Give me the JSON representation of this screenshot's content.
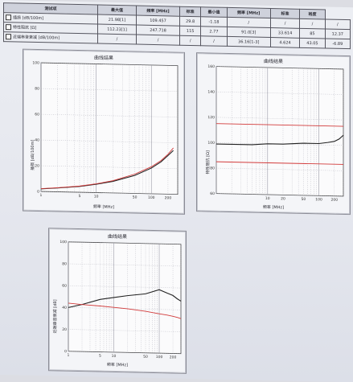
{
  "table": {
    "headers": [
      "测试项",
      "最大值",
      "频率 [MHz]",
      "标准",
      "最小值",
      "频率 [MHz]",
      "标准",
      "裕度"
    ],
    "rows": [
      {
        "name": "插损 [dB/100m]",
        "cells": [
          "21.98[1]",
          "109.457",
          "29.8",
          "-1.18",
          "/",
          "/",
          "/",
          "/"
        ]
      },
      {
        "name": "特性阻抗 [Ω]",
        "cells": [
          "112.23[1]",
          "247.718",
          "115",
          "2.77",
          "91.0[3]",
          "33.614",
          "85",
          "12.37"
        ]
      },
      {
        "name": "近端串音衰减 [dB/100m]",
        "cells": [
          "/",
          "/",
          "/",
          "/",
          "36.16[1-3]",
          "4.624",
          "43.05",
          "-6.89"
        ]
      }
    ]
  },
  "panels": [
    {
      "title": "曲线结果",
      "ylabel": "插损 [dB/100m]",
      "xlabel": "频率 [MHz]"
    },
    {
      "title": "曲线结果",
      "ylabel": "特性阻抗 [Ω]",
      "xlabel": "频率 [MHz]"
    },
    {
      "title": "曲线结果",
      "ylabel": "近端串音衰减 [dB]",
      "xlabel": "频率 [MHz]"
    }
  ],
  "colors": {
    "measured": "#222222",
    "limit": "#d23a3a",
    "grid": "#9a9aa6"
  },
  "chart_data": [
    {
      "type": "line",
      "title": "曲线结果",
      "xlabel": "频率 [MHz]",
      "ylabel": "插损 [dB/100m]",
      "x_scale": "log",
      "xlim": [
        1,
        300
      ],
      "ylim": [
        0,
        100
      ],
      "x_ticks": [
        "1",
        "5",
        "10",
        "50",
        "100",
        "200"
      ],
      "y_ticks": [
        "0",
        "20",
        "40",
        "60",
        "80",
        "100"
      ],
      "series": [
        {
          "values_x": [
            1,
            2,
            5,
            10,
            20,
            50,
            100,
            150,
            200,
            250
          ],
          "values_y": [
            2,
            3,
            4.5,
            6.5,
            9,
            14,
            20,
            25,
            30,
            34
          ]
        },
        {
          "values_x": [
            1,
            2,
            5,
            10,
            20,
            50,
            100,
            150,
            200,
            250
          ],
          "values_y": [
            2.2,
            3.2,
            4.8,
            6.8,
            9.5,
            15,
            21,
            26,
            31,
            36
          ]
        }
      ]
    },
    {
      "type": "line",
      "title": "曲线结果",
      "xlabel": "频率 [MHz]",
      "ylabel": "特性阻抗 [Ω]",
      "x_scale": "log",
      "xlim": [
        1,
        300
      ],
      "ylim": [
        60,
        160
      ],
      "x_ticks": [
        "10",
        "20",
        "50",
        "100",
        "200"
      ],
      "y_ticks": [
        "60",
        "80",
        "100",
        "120",
        "140",
        "160"
      ],
      "series": [
        {
          "values_x": [
            1,
            5,
            10,
            20,
            50,
            100,
            150,
            200,
            250,
            300
          ],
          "values_y": [
            99,
            99,
            100,
            100,
            101,
            101,
            102,
            103,
            105,
            108
          ]
        }
      ],
      "limits": [
        115,
        85
      ]
    },
    {
      "type": "line",
      "title": "曲线结果",
      "xlabel": "频率 [MHz]",
      "ylabel": "近端串音衰减 [dB]",
      "x_scale": "log",
      "xlim": [
        1,
        300
      ],
      "ylim": [
        0,
        100
      ],
      "x_ticks": [
        "1",
        "5",
        "10",
        "50",
        "100",
        "200"
      ],
      "y_ticks": [
        "0",
        "20",
        "40",
        "60",
        "80",
        "100"
      ],
      "series": [
        {
          "values_x": [
            1,
            2,
            5,
            10,
            20,
            50,
            100,
            150,
            200,
            250,
            300
          ],
          "values_y": [
            40,
            43,
            48,
            50,
            52,
            54,
            58,
            55,
            53,
            50,
            48
          ]
        },
        {
          "values_x": [
            1,
            2,
            5,
            10,
            20,
            50,
            100,
            150,
            200,
            250,
            300
          ],
          "values_y": [
            44,
            43,
            42,
            41,
            40,
            38,
            36,
            35,
            34,
            33,
            32
          ]
        }
      ]
    }
  ]
}
